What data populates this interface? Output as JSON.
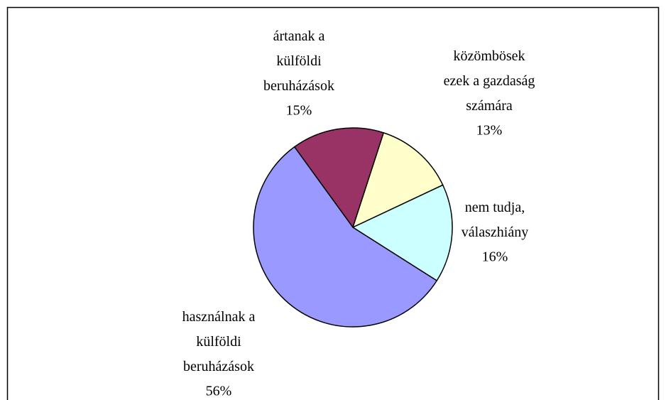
{
  "chart_data": {
    "type": "pie",
    "categories": [
      "ártanak a\nkülföldi\nberuházások",
      "közömbösek\nezek a gazdaság\nszámára",
      "nem tudja,\nválaszhiány",
      "használnak a\nkülföldi\nberuházások"
    ],
    "values": [
      15,
      13,
      16,
      56
    ],
    "value_labels": [
      "15%",
      "13%",
      "16%",
      "56%"
    ],
    "colors": [
      "#993366",
      "#ffffcc",
      "#ccffff",
      "#9999ff"
    ]
  }
}
